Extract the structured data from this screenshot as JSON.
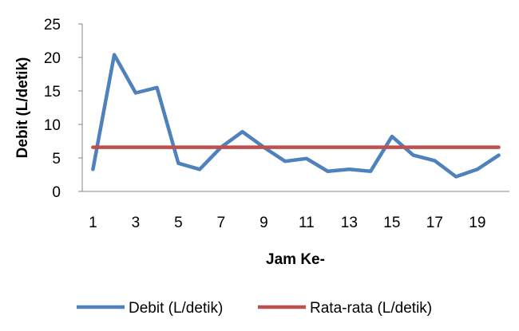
{
  "chart_data": {
    "type": "line",
    "xlabel": "Jam Ke-",
    "ylabel": "Debit (L/detik)",
    "ylim": [
      0,
      25
    ],
    "yticks": [
      0,
      5,
      10,
      15,
      20,
      25
    ],
    "x": [
      1,
      2,
      3,
      4,
      5,
      6,
      7,
      8,
      9,
      10,
      11,
      12,
      13,
      14,
      15,
      16,
      17,
      18,
      19,
      20
    ],
    "xtick_labels": [
      "1",
      "3",
      "5",
      "7",
      "9",
      "11",
      "13",
      "15",
      "17",
      "19"
    ],
    "grid": false,
    "legend_position": "bottom",
    "series": [
      {
        "name": "Debit (L/detik)",
        "color": "#4F81BD",
        "values": [
          3.3,
          20.4,
          14.7,
          15.5,
          4.2,
          3.3,
          6.6,
          8.9,
          6.6,
          4.5,
          4.9,
          3.0,
          3.3,
          3.0,
          8.2,
          5.4,
          4.6,
          2.2,
          3.3,
          5.4
        ]
      },
      {
        "name": "Rata-rata (L/detik)",
        "color": "#C0504D",
        "values": [
          6.6,
          6.6,
          6.6,
          6.6,
          6.6,
          6.6,
          6.6,
          6.6,
          6.6,
          6.6,
          6.6,
          6.6,
          6.6,
          6.6,
          6.6,
          6.6,
          6.6,
          6.6,
          6.6,
          6.6
        ]
      }
    ]
  }
}
